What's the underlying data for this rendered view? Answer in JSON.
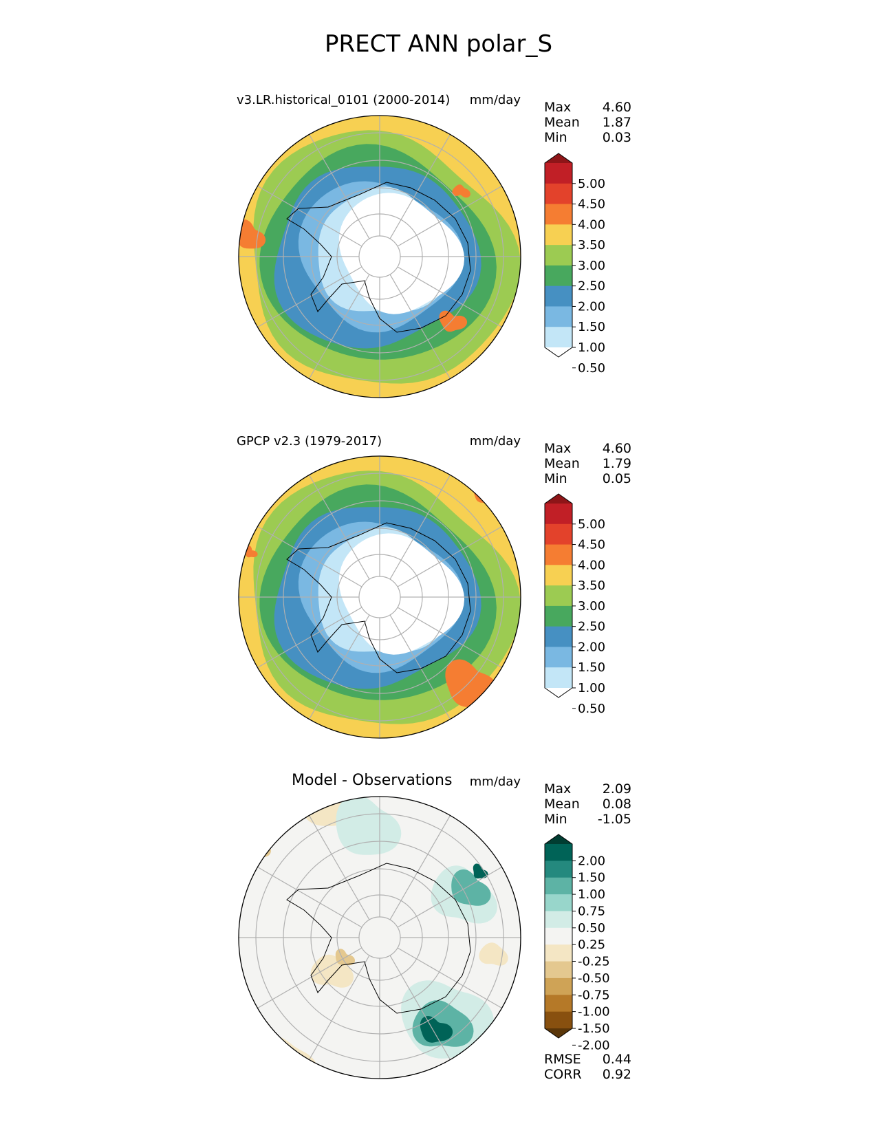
{
  "figure_title": "PRECT ANN polar_S",
  "units": "mm/day",
  "colors": {
    "precip": [
      "#ffffff",
      "#c3e6f7",
      "#7ab8e2",
      "#4690c2",
      "#48a85e",
      "#9ccb52",
      "#f7d052",
      "#f57d32",
      "#e3422b",
      "#c11f26",
      "#8e1518"
    ],
    "diff": [
      "#5a3609",
      "#88500f",
      "#b57928",
      "#cfa356",
      "#e4c88f",
      "#f4e6c4",
      "#f4f4f2",
      "#d2ece6",
      "#98d6cb",
      "#5db3a5",
      "#24897e",
      "#006357",
      "#013d32"
    ]
  },
  "chart_data": [
    {
      "type": "heatmap",
      "projection": "south polar stereographic",
      "title": "v3.LR.historical_0101 (2000-2014)",
      "units": "mm/day",
      "stats": [
        {
          "label": "Max",
          "value": "4.60"
        },
        {
          "label": "Mean",
          "value": "1.87"
        },
        {
          "label": "Min",
          "value": "0.03"
        }
      ],
      "colorbar_ticks": [
        "5.00",
        "4.50",
        "4.00",
        "3.50",
        "3.00",
        "2.50",
        "2.00",
        "1.50",
        "1.00",
        "0.50"
      ],
      "colorbar_levels": [
        0.5,
        1.0,
        1.5,
        2.0,
        2.5,
        3.0,
        3.5,
        4.0,
        4.5,
        5.0
      ]
    },
    {
      "type": "heatmap",
      "projection": "south polar stereographic",
      "title": "GPCP v2.3 (1979-2017)",
      "units": "mm/day",
      "stats": [
        {
          "label": "Max",
          "value": "4.60"
        },
        {
          "label": "Mean",
          "value": "1.79"
        },
        {
          "label": "Min",
          "value": "0.05"
        }
      ],
      "colorbar_ticks": [
        "5.00",
        "4.50",
        "4.00",
        "3.50",
        "3.00",
        "2.50",
        "2.00",
        "1.50",
        "1.00",
        "0.50"
      ],
      "colorbar_levels": [
        0.5,
        1.0,
        1.5,
        2.0,
        2.5,
        3.0,
        3.5,
        4.0,
        4.5,
        5.0
      ]
    },
    {
      "type": "heatmap",
      "projection": "south polar stereographic",
      "title": "Model - Observations",
      "units": "mm/day",
      "stats": [
        {
          "label": "Max",
          "value": "2.09"
        },
        {
          "label": "Mean",
          "value": "0.08"
        },
        {
          "label": "Min",
          "value": "-1.05"
        }
      ],
      "colorbar_ticks": [
        "2.00",
        "1.50",
        "1.00",
        "0.75",
        "0.50",
        "0.25",
        "-0.25",
        "-0.50",
        "-0.75",
        "-1.00",
        "-1.50",
        "-2.00"
      ],
      "colorbar_levels": [
        -2.0,
        -1.5,
        -1.0,
        -0.75,
        -0.5,
        -0.25,
        0.25,
        0.5,
        0.75,
        1.0,
        1.5,
        2.0
      ],
      "metrics": [
        {
          "label": "RMSE",
          "value": "0.44"
        },
        {
          "label": "CORR",
          "value": "0.92"
        }
      ]
    }
  ]
}
